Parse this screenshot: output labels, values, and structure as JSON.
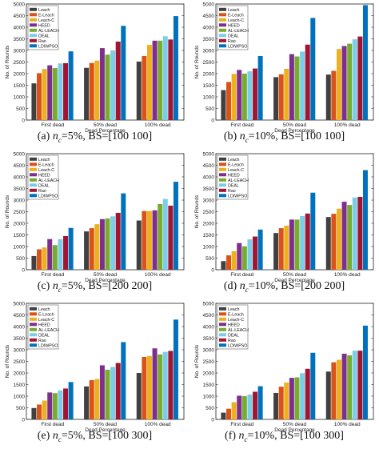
{
  "colors": [
    "#404040",
    "#d95319",
    "#edb120",
    "#7e2f8e",
    "#77ac30",
    "#7ccde8",
    "#a2142f",
    "#0072bd"
  ],
  "chart_data": [
    {
      "type": "bar",
      "caption": {
        "prefix": "(a)",
        "var": "n",
        "sub": "c",
        "rest": "=5%, BS=[100 100]"
      },
      "xlabel": "Dead Percentage",
      "ylabel": "No. of Rounds",
      "ylim": [
        0,
        5000
      ],
      "yticks": [
        0,
        500,
        1000,
        1500,
        2000,
        2500,
        3000,
        3500,
        4000,
        4500,
        5000
      ],
      "categories": [
        "First dead",
        "50% dead",
        "100% dead"
      ],
      "legend_position": "top-left",
      "series": [
        {
          "name": "Leach",
          "values": [
            1580,
            2250,
            2520
          ]
        },
        {
          "name": "E-Leach",
          "values": [
            2020,
            2460,
            2760
          ]
        },
        {
          "name": "Leach-C",
          "values": [
            2200,
            2560,
            3240
          ]
        },
        {
          "name": "HEED",
          "values": [
            2360,
            3100,
            3420
          ]
        },
        {
          "name": "AL-LEACH",
          "values": [
            2240,
            2820,
            3420
          ]
        },
        {
          "name": "DEAL",
          "values": [
            2440,
            3000,
            3610
          ]
        },
        {
          "name": "Rao",
          "values": [
            2450,
            3380,
            3470
          ]
        },
        {
          "name": "LDIWPSO",
          "values": [
            2960,
            4060,
            4480
          ]
        }
      ]
    },
    {
      "type": "bar",
      "caption": {
        "prefix": "(b)",
        "var": "n",
        "sub": "c",
        "rest": "=10%, BS=[100 100]"
      },
      "xlabel": "Dead Percentage",
      "ylabel": "No. of Rounds",
      "ylim": [
        0,
        5000
      ],
      "yticks": [
        0,
        500,
        1000,
        1500,
        2000,
        2500,
        3000,
        3500,
        4000,
        4500,
        5000
      ],
      "categories": [
        "First dead",
        "50% dead",
        "100% dead"
      ],
      "legend_position": "top-left",
      "series": [
        {
          "name": "Leach",
          "values": [
            1290,
            1850,
            1960
          ]
        },
        {
          "name": "E-Leach",
          "values": [
            1640,
            1970,
            2120
          ]
        },
        {
          "name": "Leach-C",
          "values": [
            1990,
            2210,
            3060
          ]
        },
        {
          "name": "HEED",
          "values": [
            2160,
            2840,
            3190
          ]
        },
        {
          "name": "AL-LEACH",
          "values": [
            2000,
            2740,
            3290
          ]
        },
        {
          "name": "DEAL",
          "values": [
            2100,
            2950,
            3480
          ]
        },
        {
          "name": "Rao",
          "values": [
            2220,
            3250,
            3600
          ]
        },
        {
          "name": "LDIWPSO",
          "values": [
            2760,
            4400,
            4950
          ]
        }
      ]
    },
    {
      "type": "bar",
      "caption": {
        "prefix": "(c)",
        "var": "n",
        "sub": "c",
        "rest": "=5%, BS=[200 200]"
      },
      "xlabel": "Dead Percentage",
      "ylabel": "No. of Rounds",
      "ylim": [
        0,
        5000
      ],
      "yticks": [
        0,
        500,
        1000,
        1500,
        2000,
        2500,
        3000,
        3500,
        4000,
        4500,
        5000
      ],
      "categories": [
        "First dead",
        "50% dead",
        "100% dead"
      ],
      "legend_position": "top-left",
      "series": [
        {
          "name": "Leach",
          "values": [
            590,
            1650,
            2120
          ]
        },
        {
          "name": "E-Leach",
          "values": [
            880,
            1790,
            2530
          ]
        },
        {
          "name": "Leach-C",
          "values": [
            960,
            1960,
            2530
          ]
        },
        {
          "name": "HEED",
          "values": [
            1320,
            2180,
            2560
          ]
        },
        {
          "name": "AL-LEACH",
          "values": [
            1060,
            2210,
            2830
          ]
        },
        {
          "name": "DEAL",
          "values": [
            1320,
            2300,
            3050
          ]
        },
        {
          "name": "Rao",
          "values": [
            1450,
            2450,
            2760
          ]
        },
        {
          "name": "LDIWPSO",
          "values": [
            1800,
            3290,
            3790
          ]
        }
      ]
    },
    {
      "type": "bar",
      "caption": {
        "prefix": "(d)",
        "var": "n",
        "sub": "c",
        "rest": "=10%, BS=[200 200]"
      },
      "xlabel": "Dead Percentage",
      "ylabel": "No. of Rounds",
      "ylim": [
        0,
        5000
      ],
      "yticks": [
        0,
        500,
        1000,
        1500,
        2000,
        2500,
        3000,
        3500,
        4000,
        4500,
        5000
      ],
      "categories": [
        "First dead",
        "50% dead",
        "100% dead"
      ],
      "legend_position": "top-left",
      "series": [
        {
          "name": "Leach",
          "values": [
            370,
            1580,
            2270
          ]
        },
        {
          "name": "E-Leach",
          "values": [
            620,
            1790,
            2410
          ]
        },
        {
          "name": "Leach-C",
          "values": [
            800,
            1900,
            2630
          ]
        },
        {
          "name": "HEED",
          "values": [
            1150,
            2160,
            2930
          ]
        },
        {
          "name": "AL-LEACH",
          "values": [
            1010,
            2160,
            2790
          ]
        },
        {
          "name": "DEAL",
          "values": [
            1310,
            2310,
            3110
          ]
        },
        {
          "name": "Rao",
          "values": [
            1430,
            2420,
            3140
          ]
        },
        {
          "name": "LDIWPSO",
          "values": [
            1730,
            3320,
            4290
          ]
        }
      ]
    },
    {
      "type": "bar",
      "caption": {
        "prefix": "(e)",
        "var": "n",
        "sub": "c",
        "rest": "=5%, BS=[100 300]"
      },
      "xlabel": "Dead Percentage",
      "ylabel": "No. of Rounds",
      "ylim": [
        0,
        5000
      ],
      "yticks": [
        0,
        500,
        1000,
        1500,
        2000,
        2500,
        3000,
        3500,
        4000,
        4500,
        5000
      ],
      "categories": [
        "First dead",
        "50% dead",
        "100% dead"
      ],
      "legend_position": "top-left",
      "series": [
        {
          "name": "Leach",
          "values": [
            490,
            1420,
            2000
          ]
        },
        {
          "name": "E-Leach",
          "values": [
            640,
            1690,
            2690
          ]
        },
        {
          "name": "Leach-C",
          "values": [
            810,
            1740,
            2730
          ]
        },
        {
          "name": "HEED",
          "values": [
            1160,
            2330,
            3060
          ]
        },
        {
          "name": "AL-LEACH",
          "values": [
            1130,
            2140,
            2800
          ]
        },
        {
          "name": "DEAL",
          "values": [
            1250,
            2260,
            2910
          ]
        },
        {
          "name": "Rao",
          "values": [
            1330,
            2430,
            2950
          ]
        },
        {
          "name": "LDIWPSO",
          "values": [
            1610,
            3330,
            4300
          ]
        }
      ]
    },
    {
      "type": "bar",
      "caption": {
        "prefix": "(f)",
        "var": "n",
        "sub": "c",
        "rest": "=10%, BS=[100 300]"
      },
      "xlabel": "Dead Percentage",
      "ylabel": "No. of Rounds",
      "ylim": [
        0,
        5000
      ],
      "yticks": [
        0,
        500,
        1000,
        1500,
        2000,
        2500,
        3000,
        3500,
        4000,
        4500,
        5000
      ],
      "categories": [
        "First dead",
        "50% dead",
        "100% dead"
      ],
      "legend_position": "top-left",
      "series": [
        {
          "name": "Leach",
          "values": [
            290,
            1140,
            2060
          ]
        },
        {
          "name": "E-Leach",
          "values": [
            460,
            1410,
            2460
          ]
        },
        {
          "name": "Leach-C",
          "values": [
            740,
            1590,
            2570
          ]
        },
        {
          "name": "HEED",
          "values": [
            1020,
            1790,
            2830
          ]
        },
        {
          "name": "AL-LEACH",
          "values": [
            1000,
            1810,
            2760
          ]
        },
        {
          "name": "DEAL",
          "values": [
            1070,
            1990,
            2960
          ]
        },
        {
          "name": "Rao",
          "values": [
            1190,
            2180,
            2960
          ]
        },
        {
          "name": "LDIWPSO",
          "values": [
            1430,
            2870,
            4040
          ]
        }
      ]
    }
  ]
}
